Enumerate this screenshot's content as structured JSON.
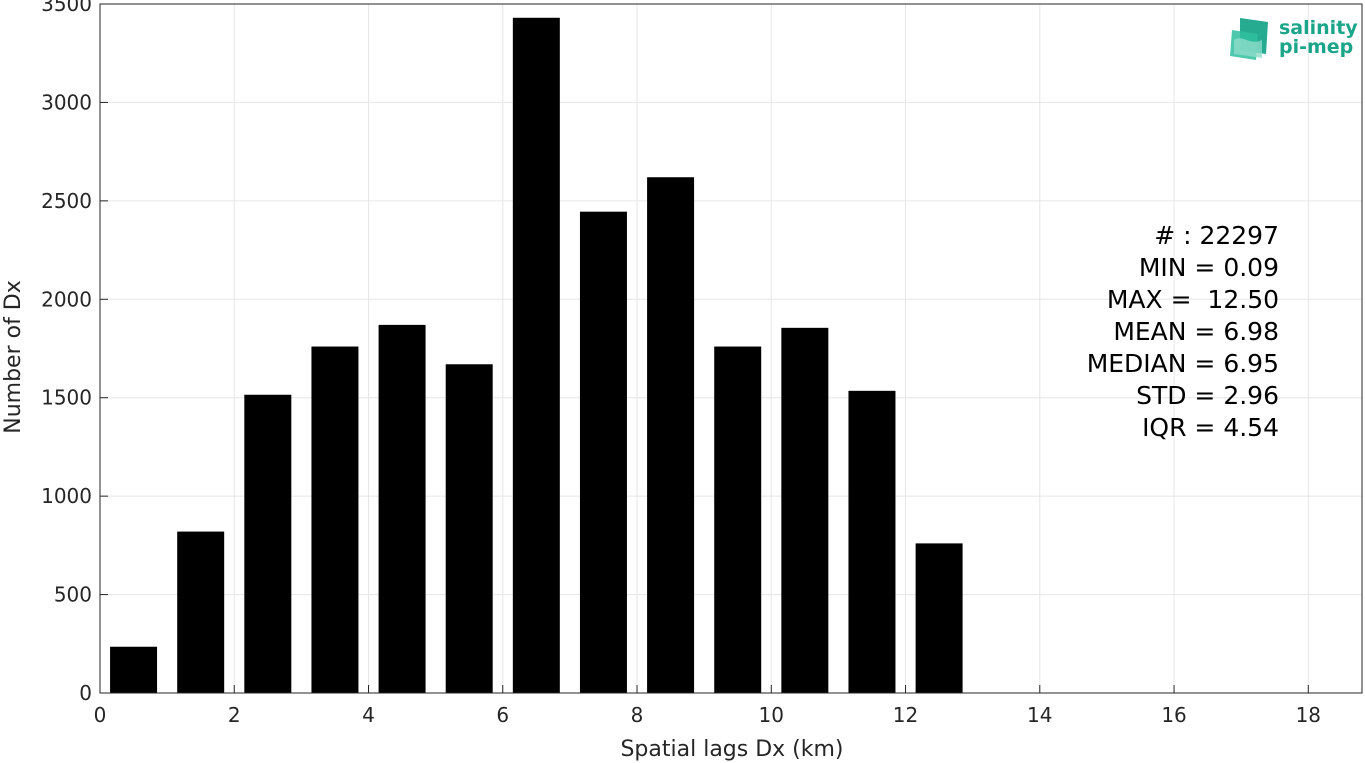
{
  "chart_data": {
    "type": "bar",
    "title": "",
    "xlabel": "Spatial lags Dx (km)",
    "ylabel": "Number of Dx",
    "xlim": [
      0,
      18.8
    ],
    "ylim": [
      0,
      3500
    ],
    "x_ticks": [
      0,
      2,
      4,
      6,
      8,
      10,
      12,
      14,
      16,
      18
    ],
    "y_ticks": [
      0,
      500,
      1000,
      1500,
      2000,
      2500,
      3000,
      3500
    ],
    "bar_width": 0.7,
    "x": [
      0.5,
      1.5,
      2.5,
      3.5,
      4.5,
      5.5,
      6.5,
      7.5,
      8.5,
      9.5,
      10.5,
      11.5,
      12.5
    ],
    "values": [
      235,
      820,
      1515,
      1760,
      1870,
      1670,
      3430,
      2445,
      2620,
      1760,
      1855,
      1535,
      760
    ],
    "bar_color": "#000000",
    "grid": true,
    "stats": [
      "# : 22297",
      "MIN = 0.09",
      "MAX =  12.50",
      "MEAN = 6.98",
      "MEDIAN = 6.95",
      "STD = 2.96",
      "IQR = 4.54"
    ]
  },
  "logo": {
    "line1": "salinity",
    "line2": "pi-mep",
    "color": "#1aa58a"
  }
}
